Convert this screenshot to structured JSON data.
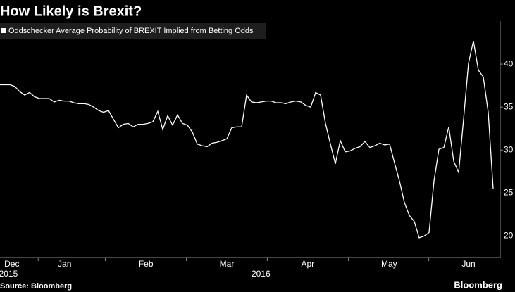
{
  "chart_data": {
    "type": "line",
    "title": "How Likely is Brexit?",
    "source": "Source: Bloomberg",
    "brand": "Bloomberg",
    "series": [
      {
        "name": "Oddschecker Average Probability of BREXIT Implied from Betting Odds",
        "color": "#ffffff",
        "values": [
          37.6,
          37.6,
          37.6,
          37.4,
          36.8,
          36.4,
          36.7,
          36.2,
          36.0,
          36.0,
          36.0,
          35.6,
          35.8,
          35.7,
          35.7,
          35.5,
          35.4,
          35.4,
          35.3,
          35.0,
          34.6,
          34.4,
          34.6,
          33.6,
          32.6,
          33.0,
          33.1,
          32.7,
          33.0,
          33.0,
          33.1,
          33.3,
          34.5,
          32.4,
          34.0,
          32.9,
          34.1,
          33.1,
          32.9,
          32.1,
          30.7,
          30.5,
          30.4,
          30.8,
          30.9,
          31.1,
          31.3,
          32.6,
          32.7,
          32.7,
          36.4,
          35.6,
          35.5,
          35.6,
          35.7,
          35.7,
          35.5,
          35.5,
          35.4,
          35.6,
          35.7,
          35.6,
          35.2,
          35.0,
          36.7,
          36.4,
          33.1,
          30.7,
          28.4,
          31.1,
          29.8,
          29.9,
          30.2,
          30.4,
          31.0,
          30.3,
          30.5,
          30.8,
          30.6,
          30.7,
          28.5,
          26.4,
          23.9,
          22.4,
          21.7,
          19.8,
          20.0,
          20.4,
          26.4,
          30.1,
          30.3,
          32.7,
          28.7,
          27.4,
          33.6,
          40.1,
          42.7,
          39.3,
          38.5,
          34.4,
          25.5
        ]
      }
    ],
    "xlim": [
      0,
      100
    ],
    "xticks": [
      {
        "value": 2.4,
        "label": "Dec"
      },
      {
        "value": 13.1,
        "label": "Jan"
      },
      {
        "value": 29.6,
        "label": "Feb"
      },
      {
        "value": 46,
        "label": "Mar"
      },
      {
        "value": 62.4,
        "label": "Apr"
      },
      {
        "value": 78.9,
        "label": "May"
      },
      {
        "value": 95,
        "label": "Jun"
      }
    ],
    "year_labels": [
      {
        "value": 1.7,
        "label": "2015"
      },
      {
        "value": 52.9,
        "label": "2016"
      }
    ],
    "ylim": [
      17.5,
      45
    ],
    "yticks": [
      20,
      25,
      30,
      35,
      40
    ],
    "grid": false
  }
}
